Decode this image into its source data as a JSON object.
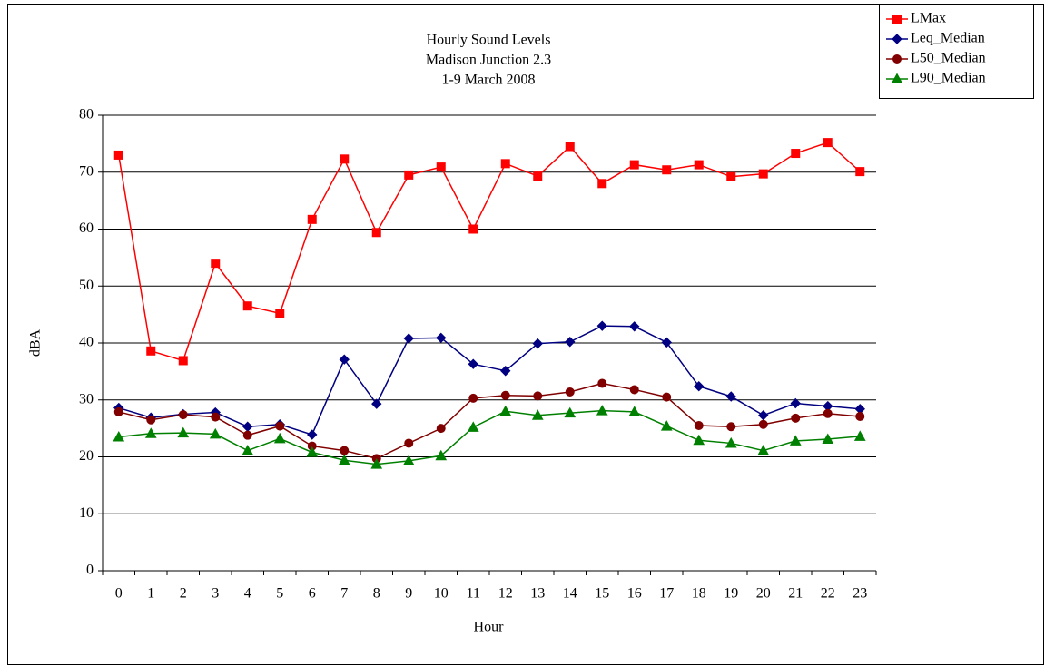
{
  "chart_data": {
    "type": "line",
    "title": [
      "Hourly Sound Levels",
      "Madison Junction 2.3",
      "1-9 March 2008"
    ],
    "x_label": "Hour",
    "y_label": "dBA",
    "categories": [
      "0",
      "1",
      "2",
      "3",
      "4",
      "5",
      "6",
      "7",
      "8",
      "9",
      "10",
      "11",
      "12",
      "13",
      "14",
      "15",
      "16",
      "17",
      "18",
      "19",
      "20",
      "21",
      "22",
      "23"
    ],
    "ylim": [
      0,
      80
    ],
    "yticks": [
      0,
      10,
      20,
      30,
      40,
      50,
      60,
      70,
      80
    ],
    "grid": true,
    "legend": "top-right",
    "series": [
      {
        "name": "LMax",
        "color": "#ff0000",
        "marker": "square",
        "values": [
          73,
          38.6,
          36.9,
          54,
          46.5,
          45.2,
          61.7,
          72.3,
          59.4,
          69.5,
          70.9,
          60,
          71.5,
          69.3,
          74.5,
          68,
          71.3,
          70.4,
          71.3,
          69.2,
          69.7,
          73.3,
          75.2,
          70.1
        ]
      },
      {
        "name": "Leq_Median",
        "color": "#000080",
        "marker": "diamond",
        "values": [
          28.6,
          26.9,
          27.5,
          27.8,
          25.3,
          25.7,
          23.9,
          37.1,
          29.3,
          40.8,
          40.9,
          36.3,
          35.1,
          39.9,
          40.2,
          43,
          42.9,
          40.1,
          32.4,
          30.6,
          27.3,
          29.4,
          28.9,
          28.4
        ]
      },
      {
        "name": "L50_Median",
        "color": "#800000",
        "marker": "circle",
        "values": [
          27.9,
          26.5,
          27.4,
          27,
          23.8,
          25.4,
          21.9,
          21.1,
          19.7,
          22.4,
          25,
          30.3,
          30.8,
          30.7,
          31.4,
          32.9,
          31.8,
          30.5,
          25.5,
          25.3,
          25.7,
          26.8,
          27.6,
          27.1
        ]
      },
      {
        "name": "L90_Median",
        "color": "#008000",
        "marker": "triangle",
        "values": [
          23.5,
          24.1,
          24.2,
          24,
          21.1,
          23.2,
          20.8,
          19.4,
          18.7,
          19.3,
          20.2,
          25.2,
          28,
          27.3,
          27.7,
          28.1,
          27.9,
          25.4,
          22.9,
          22.4,
          21.1,
          22.8,
          23.1,
          23.6
        ]
      }
    ]
  }
}
